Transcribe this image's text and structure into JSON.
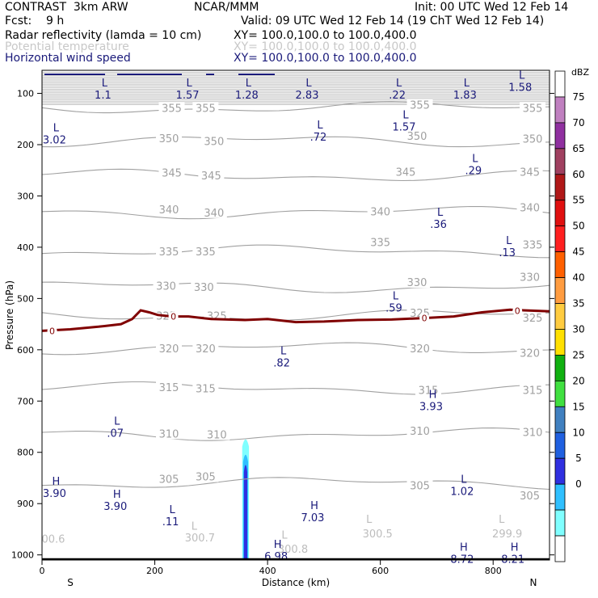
{
  "header": {
    "model": "CONTRAST  3km ARW",
    "center": "NCAR/MMM",
    "init": "Init: 00 UTC Wed 12 Feb 14",
    "fcst": "Fcst:    9 h",
    "valid": "Valid: 09 UTC Wed 12 Feb 14 (19 ChT Wed 12 Feb 14)",
    "field1": "Radar reflectivity (lamda = 10 cm)",
    "field1_xy": "XY= 100.0,100.0 to 100.0,400.0",
    "field2": "Potential temperature",
    "field2_xy": "XY= 100.0,100.0 to 100.0,400.0",
    "field3": "Horizontal wind speed",
    "field3_xy": "XY= 100.0,100.0 to 100.0,400.0"
  },
  "colors": {
    "black": "#000000",
    "theta": "#a0a0a0",
    "wind": "#1a1a7a",
    "zero_line": "#800000",
    "potential_label": "#bdbdbd"
  },
  "chart_data": {
    "type": "heatmap",
    "title": "Cross section: radar reflectivity, potential temperature, horizontal wind speed",
    "xlabel": "Distance (km)",
    "ylabel": "Pressure (hPa)",
    "xlim": [
      0,
      900
    ],
    "ylim": [
      1010,
      55
    ],
    "x_ticks": [
      0,
      200,
      400,
      600,
      800
    ],
    "y_ticks": [
      100,
      200,
      300,
      400,
      500,
      600,
      700,
      800,
      900,
      1000
    ],
    "end_labels": {
      "left": "S",
      "right": "N"
    },
    "colorbar": {
      "unit": "dBZ",
      "levels": [
        "75",
        "70",
        "65",
        "60",
        "55",
        "50",
        "45",
        "40",
        "35",
        "30",
        "25",
        "20",
        "15",
        "10",
        "5",
        "0"
      ],
      "colors": [
        "#ffffff",
        "#c080c0",
        "#9030a0",
        "#a04060",
        "#b01818",
        "#e01010",
        "#ff2020",
        "#ff6000",
        "#ff9c40",
        "#ffcc40",
        "#ffe000",
        "#10b010",
        "#40e040",
        "#4080c0",
        "#2060e0",
        "#3030e0",
        "#30c0ff",
        "#80ffff",
        "#ffffff"
      ]
    },
    "theta_isentropes": [
      {
        "value": "355",
        "p": 128,
        "labels": [
          {
            "x": 230,
            "p": 128
          },
          {
            "x": 290,
            "p": 128
          },
          {
            "x": 670,
            "p": 122
          },
          {
            "x": 870,
            "p": 128
          }
        ]
      },
      {
        "value": "350",
        "p": 193,
        "labels": [
          {
            "x": 225,
            "p": 187
          },
          {
            "x": 305,
            "p": 193
          },
          {
            "x": 665,
            "p": 183
          },
          {
            "x": 870,
            "p": 188
          }
        ]
      },
      {
        "value": "345",
        "p": 260,
        "labels": [
          {
            "x": 230,
            "p": 254
          },
          {
            "x": 300,
            "p": 260
          },
          {
            "x": 645,
            "p": 253
          },
          {
            "x": 865,
            "p": 253
          }
        ]
      },
      {
        "value": "340",
        "p": 332,
        "labels": [
          {
            "x": 225,
            "p": 326
          },
          {
            "x": 305,
            "p": 332
          },
          {
            "x": 600,
            "p": 330
          },
          {
            "x": 865,
            "p": 322
          }
        ]
      },
      {
        "value": "335",
        "p": 408,
        "labels": [
          {
            "x": 225,
            "p": 408
          },
          {
            "x": 290,
            "p": 408
          },
          {
            "x": 600,
            "p": 390
          },
          {
            "x": 870,
            "p": 395
          }
        ]
      },
      {
        "value": "330",
        "p": 477,
        "labels": [
          {
            "x": 220,
            "p": 475
          },
          {
            "x": 287,
            "p": 477
          },
          {
            "x": 665,
            "p": 468
          },
          {
            "x": 865,
            "p": 458
          }
        ]
      },
      {
        "value": "325",
        "p": 533,
        "labels": [
          {
            "x": 220,
            "p": 533
          },
          {
            "x": 310,
            "p": 533
          },
          {
            "x": 670,
            "p": 528
          },
          {
            "x": 870,
            "p": 537
          }
        ]
      },
      {
        "value": "320",
        "p": 597,
        "labels": [
          {
            "x": 225,
            "p": 597
          },
          {
            "x": 290,
            "p": 597
          },
          {
            "x": 670,
            "p": 597
          },
          {
            "x": 865,
            "p": 606
          }
        ]
      },
      {
        "value": "315",
        "p": 675,
        "labels": [
          {
            "x": 225,
            "p": 673
          },
          {
            "x": 290,
            "p": 675
          },
          {
            "x": 685,
            "p": 678
          },
          {
            "x": 870,
            "p": 678
          }
        ]
      },
      {
        "value": "310",
        "p": 765,
        "labels": [
          {
            "x": 225,
            "p": 763
          },
          {
            "x": 310,
            "p": 765
          },
          {
            "x": 670,
            "p": 758
          },
          {
            "x": 870,
            "p": 760
          }
        ]
      },
      {
        "value": "305",
        "p": 860,
        "labels": [
          {
            "x": 225,
            "p": 852
          },
          {
            "x": 290,
            "p": 847
          },
          {
            "x": 670,
            "p": 864
          },
          {
            "x": 865,
            "p": 884
          }
        ]
      }
    ],
    "surface_theta_labels": [
      {
        "text": "00.6",
        "x": 20,
        "p": 968
      },
      {
        "text": "L",
        "x": 270,
        "p": 943
      },
      {
        "text": "300.7",
        "x": 280,
        "p": 966
      },
      {
        "text": "L",
        "x": 430,
        "p": 960
      },
      {
        "text": "300.8",
        "x": 445,
        "p": 988
      },
      {
        "text": "L",
        "x": 580,
        "p": 930
      },
      {
        "text": "300.5",
        "x": 595,
        "p": 958
      },
      {
        "text": "L",
        "x": 815,
        "p": 930
      },
      {
        "text": "299.9",
        "x": 825,
        "p": 958
      }
    ],
    "zero_contour": [
      [
        0,
        563
      ],
      [
        50,
        560
      ],
      [
        100,
        555
      ],
      [
        140,
        550
      ],
      [
        160,
        540
      ],
      [
        175,
        523
      ],
      [
        190,
        527
      ],
      [
        205,
        532
      ],
      [
        230,
        535
      ],
      [
        260,
        535
      ],
      [
        300,
        540
      ],
      [
        360,
        542
      ],
      [
        400,
        540
      ],
      [
        450,
        546
      ],
      [
        500,
        545
      ],
      [
        560,
        542
      ],
      [
        620,
        541
      ],
      [
        680,
        538
      ],
      [
        730,
        535
      ],
      [
        780,
        527
      ],
      [
        830,
        522
      ],
      [
        900,
        525
      ]
    ],
    "zero_labels": [
      {
        "text": "0",
        "x": 18,
        "p": 563
      },
      {
        "text": "0",
        "x": 233,
        "p": 535
      },
      {
        "text": "0",
        "x": 678,
        "p": 538
      },
      {
        "text": "0",
        "x": 843,
        "p": 524
      }
    ],
    "wind_extrema": [
      {
        "kind": "L",
        "value": "1.1",
        "x": 88,
        "p": 93
      },
      {
        "kind": "L",
        "value": "1.57",
        "x": 238,
        "p": 93
      },
      {
        "kind": "L",
        "value": "1.28",
        "x": 343,
        "p": 93
      },
      {
        "kind": "L",
        "value": "2.83",
        "x": 450,
        "p": 93
      },
      {
        "kind": "L",
        "value": ".22",
        "x": 610,
        "p": 93
      },
      {
        "kind": "L",
        "value": "1.83",
        "x": 730,
        "p": 93
      },
      {
        "kind": "L",
        "value": "1.58",
        "x": 828,
        "p": 78
      },
      {
        "kind": "L",
        "value": "3.02",
        "x": 2,
        "p": 180
      },
      {
        "kind": "L",
        "value": ".72",
        "x": 470,
        "p": 175
      },
      {
        "kind": "L",
        "value": "1.57",
        "x": 622,
        "p": 155
      },
      {
        "kind": "L",
        "value": ".29",
        "x": 745,
        "p": 240
      },
      {
        "kind": "L",
        "value": ".36",
        "x": 683,
        "p": 345
      },
      {
        "kind": "L",
        "value": ".13",
        "x": 805,
        "p": 400
      },
      {
        "kind": "L",
        "value": ".59",
        "x": 604,
        "p": 508
      },
      {
        "kind": "L",
        "value": ".82",
        "x": 405,
        "p": 615
      },
      {
        "kind": "H",
        "value": "3.93",
        "x": 670,
        "p": 700
      },
      {
        "kind": "L",
        "value": ".07",
        "x": 110,
        "p": 752
      },
      {
        "kind": "H",
        "value": "3.90",
        "x": 2,
        "p": 870
      },
      {
        "kind": "H",
        "value": "3.90",
        "x": 110,
        "p": 895
      },
      {
        "kind": "L",
        "value": "1.02",
        "x": 725,
        "p": 866
      },
      {
        "kind": "L",
        "value": ".11",
        "x": 208,
        "p": 925
      },
      {
        "kind": "H",
        "value": "7.03",
        "x": 460,
        "p": 917
      },
      {
        "kind": "H",
        "value": "6.98",
        "x": 395,
        "p": 993
      },
      {
        "kind": "H",
        "value": "8.72",
        "x": 725,
        "p": 998
      },
      {
        "kind": "H",
        "value": "8.21",
        "x": 815,
        "p": 998
      }
    ],
    "reflectivity": [
      {
        "dbz": 5,
        "x_center": 361,
        "half_width_km": 6,
        "p_top": 770,
        "p_bottom": 1008
      },
      {
        "dbz": 10,
        "x_center": 361,
        "half_width_km": 4.5,
        "p_top": 800,
        "p_bottom": 1008
      },
      {
        "dbz": 15,
        "x_center": 361,
        "half_width_km": 3,
        "p_top": 820,
        "p_bottom": 1008
      }
    ]
  }
}
